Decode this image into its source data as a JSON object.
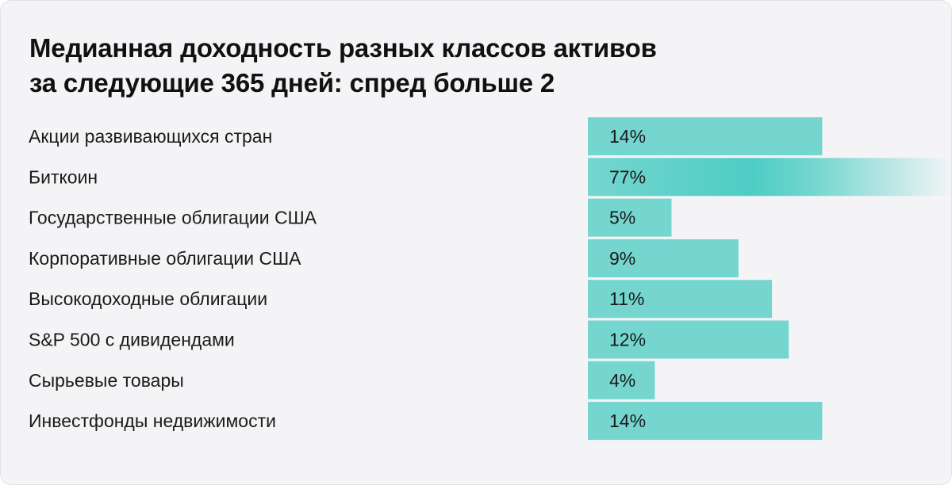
{
  "title_lines": [
    "Медианная доходность разных классов активов",
    "за следующие 365 дней: спред больше 2"
  ],
  "colors": {
    "card_background": "#f4f4f6",
    "bar": "#74d6cf",
    "bar_highlight": "#4ecdc4",
    "text": "#1a1a1a"
  },
  "chart_data": {
    "type": "bar",
    "orientation": "horizontal",
    "title": "Медианная доходность разных классов активов за следующие 365 дней: спред больше 2",
    "xlabel": "",
    "ylabel": "",
    "categories": [
      "Акции развивающихся стран",
      "Биткоин",
      "Государственные облигации США",
      "Корпоративные облигации США",
      "Высокодоходные облигации",
      "S&P 500 с дивидендами",
      "Сырьевые товары",
      "Инвестфонды недвижимости"
    ],
    "values": [
      14,
      77,
      5,
      9,
      11,
      12,
      4,
      14
    ],
    "value_labels": [
      "14%",
      "77%",
      "5%",
      "9%",
      "11%",
      "12%",
      "4%",
      "14%"
    ],
    "unit": "%",
    "grid": false,
    "legend": "none",
    "highlight_index": 1,
    "highlight_note": "Биткоин bar fades out past the right edge"
  }
}
